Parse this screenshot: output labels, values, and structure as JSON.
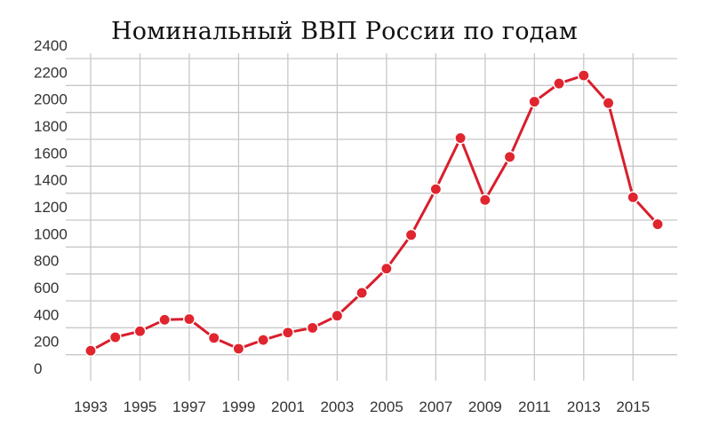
{
  "chart_data": {
    "type": "line",
    "title": "Номинальный ВВП России по годам",
    "xlabel": "",
    "ylabel": "",
    "x": [
      1993,
      1994,
      1995,
      1996,
      1997,
      1998,
      1999,
      2000,
      2001,
      2002,
      2003,
      2004,
      2005,
      2006,
      2007,
      2008,
      2009,
      2010,
      2011,
      2012,
      2013,
      2014,
      2015,
      2016
    ],
    "series": [
      {
        "values": [
          190,
          290,
          335,
          420,
          425,
          285,
          205,
          270,
          325,
          360,
          450,
          620,
          800,
          1050,
          1390,
          1770,
          1310,
          1630,
          2040,
          2175,
          2235,
          2030,
          1330,
          1130
        ]
      }
    ],
    "ylim": [
      0,
      2400
    ],
    "yticks": [
      "0",
      "200",
      "400",
      "600",
      "800",
      "1000",
      "1200",
      "1400",
      "1600",
      "1800",
      "2000",
      "2200",
      "2400"
    ],
    "xticks": [
      "1993",
      "1995",
      "1997",
      "1999",
      "2001",
      "2003",
      "2005",
      "2007",
      "2009",
      "2011",
      "2013",
      "2015"
    ],
    "grid": true,
    "colors": {
      "line": "#d81e2c",
      "marker": "#e0252f",
      "grid": "#c8c8c8"
    }
  }
}
